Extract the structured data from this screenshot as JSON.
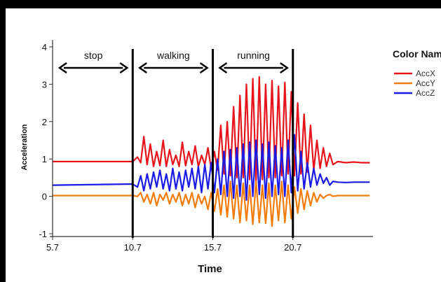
{
  "chart_data": {
    "type": "line",
    "xlabel": "Time",
    "ylabel": "Acceleration",
    "xlim": [
      5.7,
      25.7
    ],
    "ylim": [
      -1,
      4
    ],
    "x_ticks": [
      "5.7",
      "10.7",
      "15.7",
      "20.7"
    ],
    "y_ticks": [
      "-1",
      "0",
      "1",
      "2",
      "3",
      "4"
    ],
    "grid": false,
    "legend": {
      "title": "Color Name",
      "placement": "right",
      "entries": [
        {
          "label": "AccX",
          "color": "#e8141b"
        },
        {
          "label": "AccY",
          "color": "#f47c0b"
        },
        {
          "label": "AccZ",
          "color": "#1b1be6"
        }
      ]
    },
    "phases": [
      {
        "label": "stop",
        "x_start": 5.7,
        "x_end": 10.7
      },
      {
        "label": "walking",
        "x_start": 10.7,
        "x_end": 15.7
      },
      {
        "label": "running",
        "x_start": 15.7,
        "x_end": 20.7
      }
    ],
    "phase_boundaries": [
      10.7,
      15.7,
      20.7
    ],
    "series": [
      {
        "name": "AccX",
        "color": "#e8141b",
        "x": [
          5.7,
          10.7,
          11.0,
          11.2,
          11.4,
          11.6,
          11.8,
          12.0,
          12.2,
          12.4,
          12.6,
          12.8,
          13.0,
          13.2,
          13.4,
          13.6,
          13.8,
          14.0,
          14.2,
          14.4,
          14.6,
          14.8,
          15.0,
          15.2,
          15.4,
          15.6,
          15.8,
          16.0,
          16.2,
          16.4,
          16.6,
          16.8,
          17.0,
          17.2,
          17.4,
          17.6,
          17.8,
          18.0,
          18.2,
          18.4,
          18.6,
          18.8,
          19.0,
          19.2,
          19.4,
          19.6,
          19.8,
          20.0,
          20.2,
          20.4,
          20.6,
          20.8,
          21.0,
          21.2,
          21.4,
          21.6,
          21.8,
          22.0,
          22.2,
          22.4,
          22.6,
          22.8,
          23.0,
          23.2,
          23.5,
          24.0,
          24.5,
          25.0,
          25.5
        ],
        "values": [
          0.93,
          0.93,
          1.05,
          0.9,
          1.6,
          0.85,
          1.4,
          0.8,
          1.2,
          0.82,
          1.5,
          0.8,
          1.25,
          0.85,
          1.1,
          0.8,
          1.45,
          0.82,
          1.2,
          0.85,
          1.35,
          0.8,
          1.1,
          0.85,
          1.3,
          0.75,
          1.2,
          0.7,
          1.9,
          0.6,
          2.0,
          0.55,
          2.4,
          0.5,
          2.7,
          0.5,
          3.0,
          0.45,
          3.15,
          0.4,
          3.2,
          0.45,
          3.0,
          0.5,
          3.1,
          0.5,
          2.95,
          0.55,
          3.05,
          0.6,
          2.8,
          0.55,
          2.5,
          0.6,
          2.2,
          0.65,
          1.9,
          0.7,
          1.5,
          0.75,
          1.3,
          0.8,
          1.15,
          0.85,
          0.93,
          0.9,
          0.92,
          0.9,
          0.9
        ]
      },
      {
        "name": "AccY",
        "color": "#f47c0b",
        "x": [
          5.7,
          10.7,
          11.0,
          11.2,
          11.4,
          11.6,
          11.8,
          12.0,
          12.2,
          12.4,
          12.6,
          12.8,
          13.0,
          13.2,
          13.4,
          13.6,
          13.8,
          14.0,
          14.2,
          14.4,
          14.6,
          14.8,
          15.0,
          15.2,
          15.4,
          15.6,
          15.8,
          16.0,
          16.2,
          16.4,
          16.6,
          16.8,
          17.0,
          17.2,
          17.4,
          17.6,
          17.8,
          18.0,
          18.2,
          18.4,
          18.6,
          18.8,
          19.0,
          19.2,
          19.4,
          19.6,
          19.8,
          20.0,
          20.2,
          20.4,
          20.6,
          20.8,
          21.0,
          21.2,
          21.4,
          21.6,
          21.8,
          22.0,
          22.2,
          22.4,
          22.6,
          22.8,
          23.0,
          23.2,
          23.5,
          24.0,
          24.5,
          25.0,
          25.5
        ],
        "values": [
          0.02,
          0.02,
          0.0,
          0.1,
          -0.15,
          0.05,
          -0.2,
          0.1,
          -0.25,
          0.05,
          -0.1,
          0.1,
          -0.2,
          0.05,
          -0.15,
          0.1,
          -0.25,
          0.05,
          -0.2,
          0.1,
          -0.3,
          0.05,
          -0.2,
          0.0,
          -0.35,
          0.1,
          -0.4,
          0.2,
          -0.5,
          0.3,
          -0.55,
          0.4,
          -0.6,
          0.3,
          -0.7,
          0.35,
          -0.65,
          0.3,
          -0.75,
          0.4,
          -0.7,
          0.3,
          -0.72,
          0.35,
          -0.8,
          0.3,
          -0.65,
          0.4,
          -0.7,
          0.3,
          -0.6,
          0.25,
          -0.45,
          0.2,
          -0.35,
          0.15,
          -0.25,
          0.1,
          -0.15,
          0.05,
          -0.05,
          0.02,
          0.05,
          0.0,
          0.02,
          0.02,
          0.02,
          0.02,
          0.02
        ]
      },
      {
        "name": "AccZ",
        "color": "#1b1be6",
        "x": [
          5.7,
          10.7,
          11.0,
          11.2,
          11.4,
          11.6,
          11.8,
          12.0,
          12.2,
          12.4,
          12.6,
          12.8,
          13.0,
          13.2,
          13.4,
          13.6,
          13.8,
          14.0,
          14.2,
          14.4,
          14.6,
          14.8,
          15.0,
          15.2,
          15.4,
          15.6,
          15.8,
          16.0,
          16.2,
          16.4,
          16.6,
          16.8,
          17.0,
          17.2,
          17.4,
          17.6,
          17.8,
          18.0,
          18.2,
          18.4,
          18.6,
          18.8,
          19.0,
          19.2,
          19.4,
          19.6,
          19.8,
          20.0,
          20.2,
          20.4,
          20.6,
          20.8,
          21.0,
          21.2,
          21.4,
          21.6,
          21.8,
          22.0,
          22.2,
          22.4,
          22.6,
          22.8,
          23.0,
          23.2,
          23.5,
          24.0,
          24.5,
          25.0,
          25.5
        ],
        "values": [
          0.3,
          0.33,
          0.25,
          0.55,
          0.15,
          0.6,
          0.2,
          0.65,
          0.25,
          0.7,
          0.2,
          0.6,
          0.15,
          0.75,
          0.2,
          0.65,
          0.15,
          0.7,
          0.25,
          0.75,
          0.2,
          0.8,
          0.1,
          0.85,
          0.2,
          0.9,
          0.1,
          1.0,
          0.05,
          1.2,
          0.0,
          1.25,
          -0.05,
          1.3,
          0.0,
          1.4,
          -0.1,
          1.45,
          0.0,
          1.5,
          0.05,
          1.4,
          -0.05,
          1.45,
          0.0,
          1.35,
          0.05,
          1.3,
          0.0,
          1.5,
          0.1,
          1.65,
          0.15,
          1.2,
          0.2,
          0.9,
          0.25,
          0.75,
          0.3,
          0.6,
          0.35,
          0.5,
          0.3,
          0.4,
          0.38,
          0.37,
          0.38,
          0.38,
          0.38
        ]
      }
    ]
  }
}
